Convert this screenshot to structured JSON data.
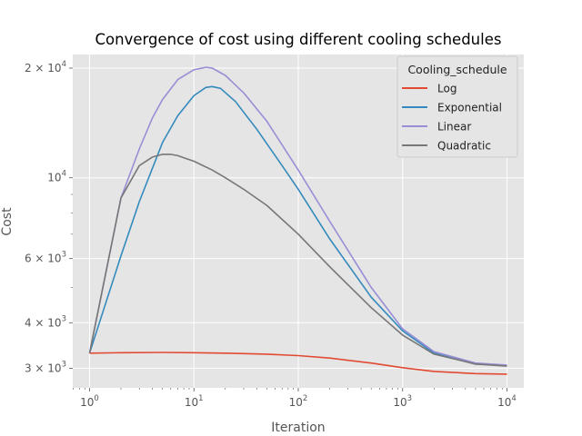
{
  "chart_data": {
    "type": "line",
    "title": "Convergence of cost using different cooling schedules",
    "xlabel": "Iteration",
    "ylabel": "Cost",
    "x_scale": "log",
    "y_scale": "log",
    "xlim": [
      0.69,
      14500
    ],
    "ylim": [
      2650,
      21800
    ],
    "x_ticks": [
      {
        "value": 1,
        "base": "10",
        "exp": "0"
      },
      {
        "value": 10,
        "base": "10",
        "exp": "1"
      },
      {
        "value": 100,
        "base": "10",
        "exp": "2"
      },
      {
        "value": 1000,
        "base": "10",
        "exp": "3"
      },
      {
        "value": 10000,
        "base": "10",
        "exp": "4"
      }
    ],
    "y_ticks": [
      {
        "value": 3000,
        "mant": "3",
        "base": "10",
        "exp": "3"
      },
      {
        "value": 4000,
        "mant": "4",
        "base": "10",
        "exp": "3"
      },
      {
        "value": 6000,
        "mant": "6",
        "base": "10",
        "exp": "3"
      },
      {
        "value": 10000,
        "mant": "",
        "base": "10",
        "exp": "4"
      },
      {
        "value": 20000,
        "mant": "2",
        "base": "10",
        "exp": "4"
      }
    ],
    "grid": true,
    "legend": {
      "title": "Cooling_schedule",
      "position": "top-right"
    },
    "series": [
      {
        "name": "Log",
        "color": "#E24A33",
        "x": [
          1,
          2,
          5,
          10,
          20,
          50,
          100,
          200,
          500,
          1000,
          2000,
          5000,
          10000
        ],
        "y": [
          3300,
          3310,
          3315,
          3310,
          3300,
          3280,
          3250,
          3200,
          3100,
          3010,
          2940,
          2900,
          2890
        ]
      },
      {
        "name": "Exponential",
        "color": "#348ABD",
        "x": [
          1,
          2,
          3,
          5,
          7,
          10,
          13,
          15,
          18,
          25,
          40,
          70,
          100,
          200,
          500,
          1000,
          2000,
          5000,
          10000
        ],
        "y": [
          3300,
          6100,
          8600,
          12500,
          14800,
          16800,
          17700,
          17800,
          17600,
          16200,
          13600,
          10800,
          9300,
          6800,
          4700,
          3800,
          3300,
          3080,
          3050
        ]
      },
      {
        "name": "Linear",
        "color": "#988ED5",
        "x": [
          1,
          2,
          3,
          4,
          5,
          7,
          10,
          13,
          15,
          20,
          30,
          50,
          100,
          200,
          500,
          1000,
          2000,
          5000,
          10000
        ],
        "y": [
          3300,
          8800,
          12000,
          14600,
          16400,
          18600,
          19800,
          20100,
          20000,
          19100,
          17100,
          14300,
          10500,
          7600,
          5000,
          3850,
          3330,
          3100,
          3060
        ]
      },
      {
        "name": "Quadratic",
        "color": "#777777",
        "x": [
          1,
          2,
          3,
          4,
          5,
          6,
          7,
          10,
          15,
          20,
          30,
          50,
          100,
          200,
          500,
          1000,
          2000,
          5000,
          10000
        ],
        "y": [
          3300,
          8800,
          10800,
          11400,
          11600,
          11600,
          11500,
          11100,
          10500,
          10000,
          9300,
          8400,
          7000,
          5700,
          4400,
          3700,
          3280,
          3080,
          3040
        ]
      }
    ]
  }
}
